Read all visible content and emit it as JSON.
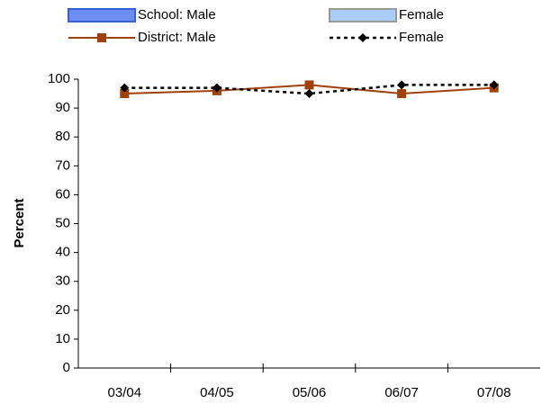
{
  "chart_data": {
    "type": "line",
    "ylabel": "Percent",
    "categories": [
      "03/04",
      "04/05",
      "05/06",
      "06/07",
      "07/08"
    ],
    "series": [
      {
        "name": "School: Male",
        "type": "bar",
        "color": "#6b8ef0",
        "border": "#3a5fd0",
        "values": [
          null,
          null,
          null,
          null,
          null
        ]
      },
      {
        "name": "Female",
        "type": "bar",
        "color": "#a9ccf8",
        "border": "#999999",
        "values": [
          null,
          null,
          null,
          null,
          null
        ]
      },
      {
        "name": "District: Male",
        "type": "line",
        "color": "#a0400a",
        "marker": "square",
        "dashed": false,
        "values": [
          95,
          96,
          98,
          95,
          97
        ]
      },
      {
        "name": "Female",
        "type": "line",
        "color": "#000000",
        "marker": "diamond",
        "dashed": true,
        "values": [
          97,
          97,
          95,
          98,
          98
        ]
      }
    ],
    "ylim": [
      0,
      100
    ],
    "yticks": [
      0,
      10,
      20,
      30,
      40,
      50,
      60,
      70,
      80,
      90,
      100
    ],
    "grid": false
  }
}
